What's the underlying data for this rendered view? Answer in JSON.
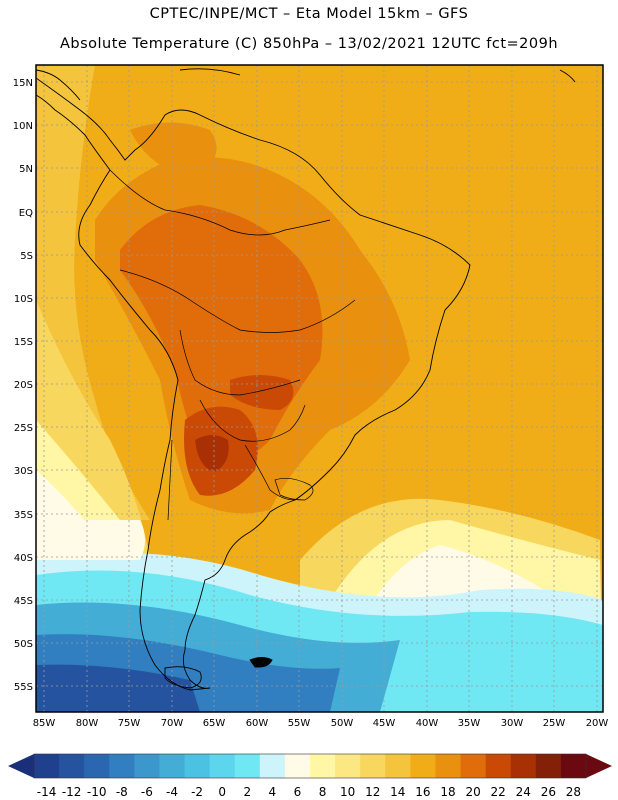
{
  "header": {
    "title": "CPTEC/INPE/MCT –  Eta Model 15km – GFS",
    "subtitle": "Absolute Temperature (C) 850hPa – 13/02/2021 12UTC fct=209h"
  },
  "map": {
    "lat_labels": [
      "15N",
      "10N",
      "5N",
      "EQ",
      "5S",
      "10S",
      "15S",
      "20S",
      "25S",
      "30S",
      "35S",
      "40S",
      "45S",
      "50S",
      "55S"
    ],
    "lon_labels": [
      "85W",
      "80W",
      "75W",
      "70W",
      "65W",
      "60W",
      "55W",
      "50W",
      "45W",
      "40W",
      "35W",
      "30W",
      "25W",
      "20W"
    ]
  },
  "colorbar": {
    "labels": [
      "-14",
      "-12",
      "-10",
      "-8",
      "-6",
      "-4",
      "-2",
      "0",
      "2",
      "4",
      "6",
      "8",
      "10",
      "12",
      "14",
      "16",
      "18",
      "20",
      "22",
      "24",
      "26",
      "28"
    ],
    "colors": [
      "#1f3f8f",
      "#25539f",
      "#2a67b0",
      "#317fc0",
      "#3b97cc",
      "#43add6",
      "#4cc2e2",
      "#5bd6ec",
      "#6fe8f4",
      "#cdf4fa",
      "#fffbe6",
      "#fff6a6",
      "#fce883",
      "#f8d75e",
      "#f4c43c",
      "#f0ad17",
      "#e9900f",
      "#e06d09",
      "#ca4a05",
      "#a93004",
      "#852008",
      "#6a0a10"
    ],
    "under_color": "#1a2f7a",
    "over_color": "#6a0a10"
  }
}
